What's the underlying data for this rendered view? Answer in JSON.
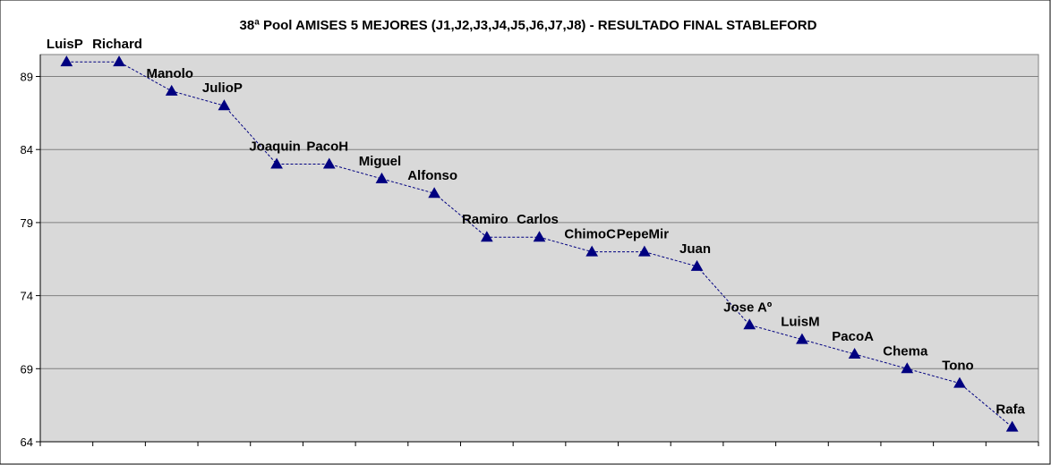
{
  "chart_data": {
    "type": "line",
    "title": "38ª Pool AMISES 5 MEJORES (J1,J2,J3,J4,J5,J6,J7,J8) - RESULTADO FINAL STABLEFORD",
    "xlabel": "",
    "ylabel": "",
    "ylim": [
      64,
      90.5
    ],
    "yticks": [
      64,
      69,
      74,
      79,
      84,
      89
    ],
    "grid": true,
    "legend": "none",
    "categories": [
      "LuisP",
      "Richard",
      "Manolo",
      "JulioP",
      "Joaquin",
      "PacoH",
      "Miguel",
      "Alfonso",
      "Ramiro",
      "Carlos",
      "ChimoC",
      "PepeMir",
      "Juan",
      "Jose Aº",
      "LuisM",
      "PacoA",
      "Chema",
      "Tono",
      "Rafa"
    ],
    "series": [
      {
        "values": [
          90,
          90,
          88,
          87,
          83,
          83,
          82,
          81,
          78,
          78,
          77,
          77,
          76,
          72,
          71,
          70,
          69,
          68,
          65
        ]
      }
    ],
    "colors": {
      "series": "#000080",
      "plot_bg": "#d9d9d9",
      "grid": "#808080"
    }
  }
}
